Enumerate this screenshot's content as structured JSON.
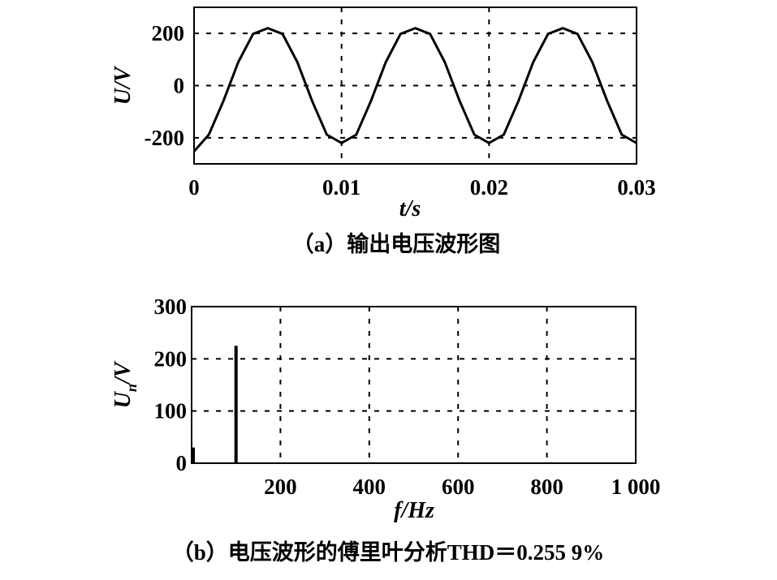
{
  "chart_data": [
    {
      "type": "line",
      "caption": "（a）输出电压波形图",
      "xlabel": "t/s",
      "ylabel": "U/V",
      "xlim": [
        0,
        0.03
      ],
      "ylim": [
        -300,
        300
      ],
      "xticks": [
        0,
        0.01,
        0.02,
        0.03
      ],
      "xtick_labels": [
        "0",
        "0.01",
        "0.02",
        "0.03"
      ],
      "yticks": [
        200,
        0,
        -200
      ],
      "ytick_labels": [
        "200",
        "0",
        "-200"
      ],
      "grid": true,
      "series": [
        {
          "x": [
            0,
            0.001,
            0.002,
            0.003,
            0.004,
            0.005,
            0.006,
            0.007,
            0.008,
            0.009,
            0.01,
            0.011,
            0.012,
            0.013,
            0.014,
            0.015,
            0.016,
            0.017,
            0.018,
            0.019,
            0.02,
            0.021,
            0.022,
            0.023,
            0.024,
            0.025,
            0.026,
            0.027,
            0.028,
            0.029,
            0.03
          ],
          "values": [
            -252,
            -188,
            -58,
            90,
            198,
            220,
            198,
            90,
            -58,
            -188,
            -220,
            -188,
            -58,
            90,
            198,
            220,
            198,
            90,
            -58,
            -188,
            -220,
            -188,
            -58,
            90,
            198,
            220,
            198,
            90,
            -58,
            -188,
            -220
          ]
        }
      ]
    },
    {
      "type": "bar",
      "caption": "（b）电压波形的傅里叶分析THD＝0.255 9%",
      "xlabel": "f/Hz",
      "ylabel": "U",
      "ylabel_sub": "n",
      "ylabel_suffix": "/V",
      "xlim": [
        0,
        1000
      ],
      "ylim": [
        0,
        300
      ],
      "xticks": [
        200,
        400,
        600,
        800,
        1000
      ],
      "xtick_labels": [
        "200",
        "400",
        "600",
        "800",
        "1 000"
      ],
      "yticks": [
        300,
        200,
        100,
        0
      ],
      "ytick_labels": [
        "300",
        "200",
        "100",
        "0"
      ],
      "grid": true,
      "x": [
        0,
        100
      ],
      "values": [
        30,
        225
      ]
    }
  ]
}
